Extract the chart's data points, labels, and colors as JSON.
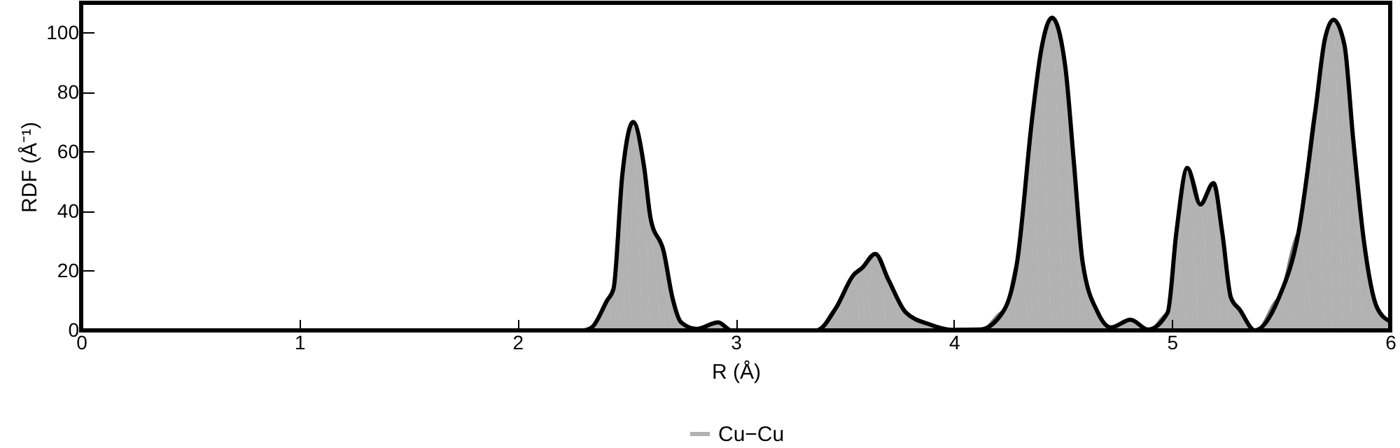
{
  "chart_data": {
    "type": "area",
    "xlabel": "R (Å)",
    "ylabel": "RDF (Å⁻¹)",
    "xlim": [
      0,
      6
    ],
    "ylim": [
      0,
      110
    ],
    "xticks": [
      0,
      1,
      2,
      3,
      4,
      5,
      6
    ],
    "yticks": [
      0,
      20,
      40,
      60,
      80,
      100
    ],
    "grid": false,
    "legend": "bottom",
    "marker": "none",
    "line_style": "solid",
    "series": [
      {
        "name": "Cu−Cu",
        "color": "#000000",
        "x": [
          0,
          2.3,
          2.34,
          2.41,
          2.44,
          2.48,
          2.53,
          2.58,
          2.61,
          2.67,
          2.71,
          2.75,
          2.82,
          2.92,
          2.98,
          3.37,
          3.46,
          3.54,
          3.58,
          3.64,
          3.7,
          3.78,
          3.89,
          3.99,
          4.12,
          4.23,
          4.29,
          4.36,
          4.4,
          4.45,
          4.51,
          4.55,
          4.59,
          4.66,
          4.72,
          4.81,
          4.89,
          4.98,
          5.02,
          5.07,
          5.13,
          5.19,
          5.23,
          5.27,
          5.31,
          5.38,
          5.49,
          5.58,
          5.66,
          5.7,
          5.74,
          5.79,
          5.83,
          5.88,
          5.94,
          6
        ],
        "values": [
          0,
          0,
          1,
          10,
          14,
          52,
          70,
          55,
          37.6,
          26.5,
          11,
          2.7,
          0.5,
          2.7,
          0,
          0,
          7.6,
          18.6,
          21,
          25.7,
          17,
          6,
          2,
          0.2,
          0.3,
          6.8,
          23,
          72,
          94,
          105,
          89,
          56.5,
          23,
          6,
          1,
          3.6,
          0.3,
          6,
          33,
          54.6,
          42.3,
          49.5,
          33,
          11,
          7,
          0,
          11,
          33,
          75.5,
          97.6,
          104.3,
          96,
          64.5,
          29.7,
          7.6,
          3
        ]
      }
    ]
  }
}
